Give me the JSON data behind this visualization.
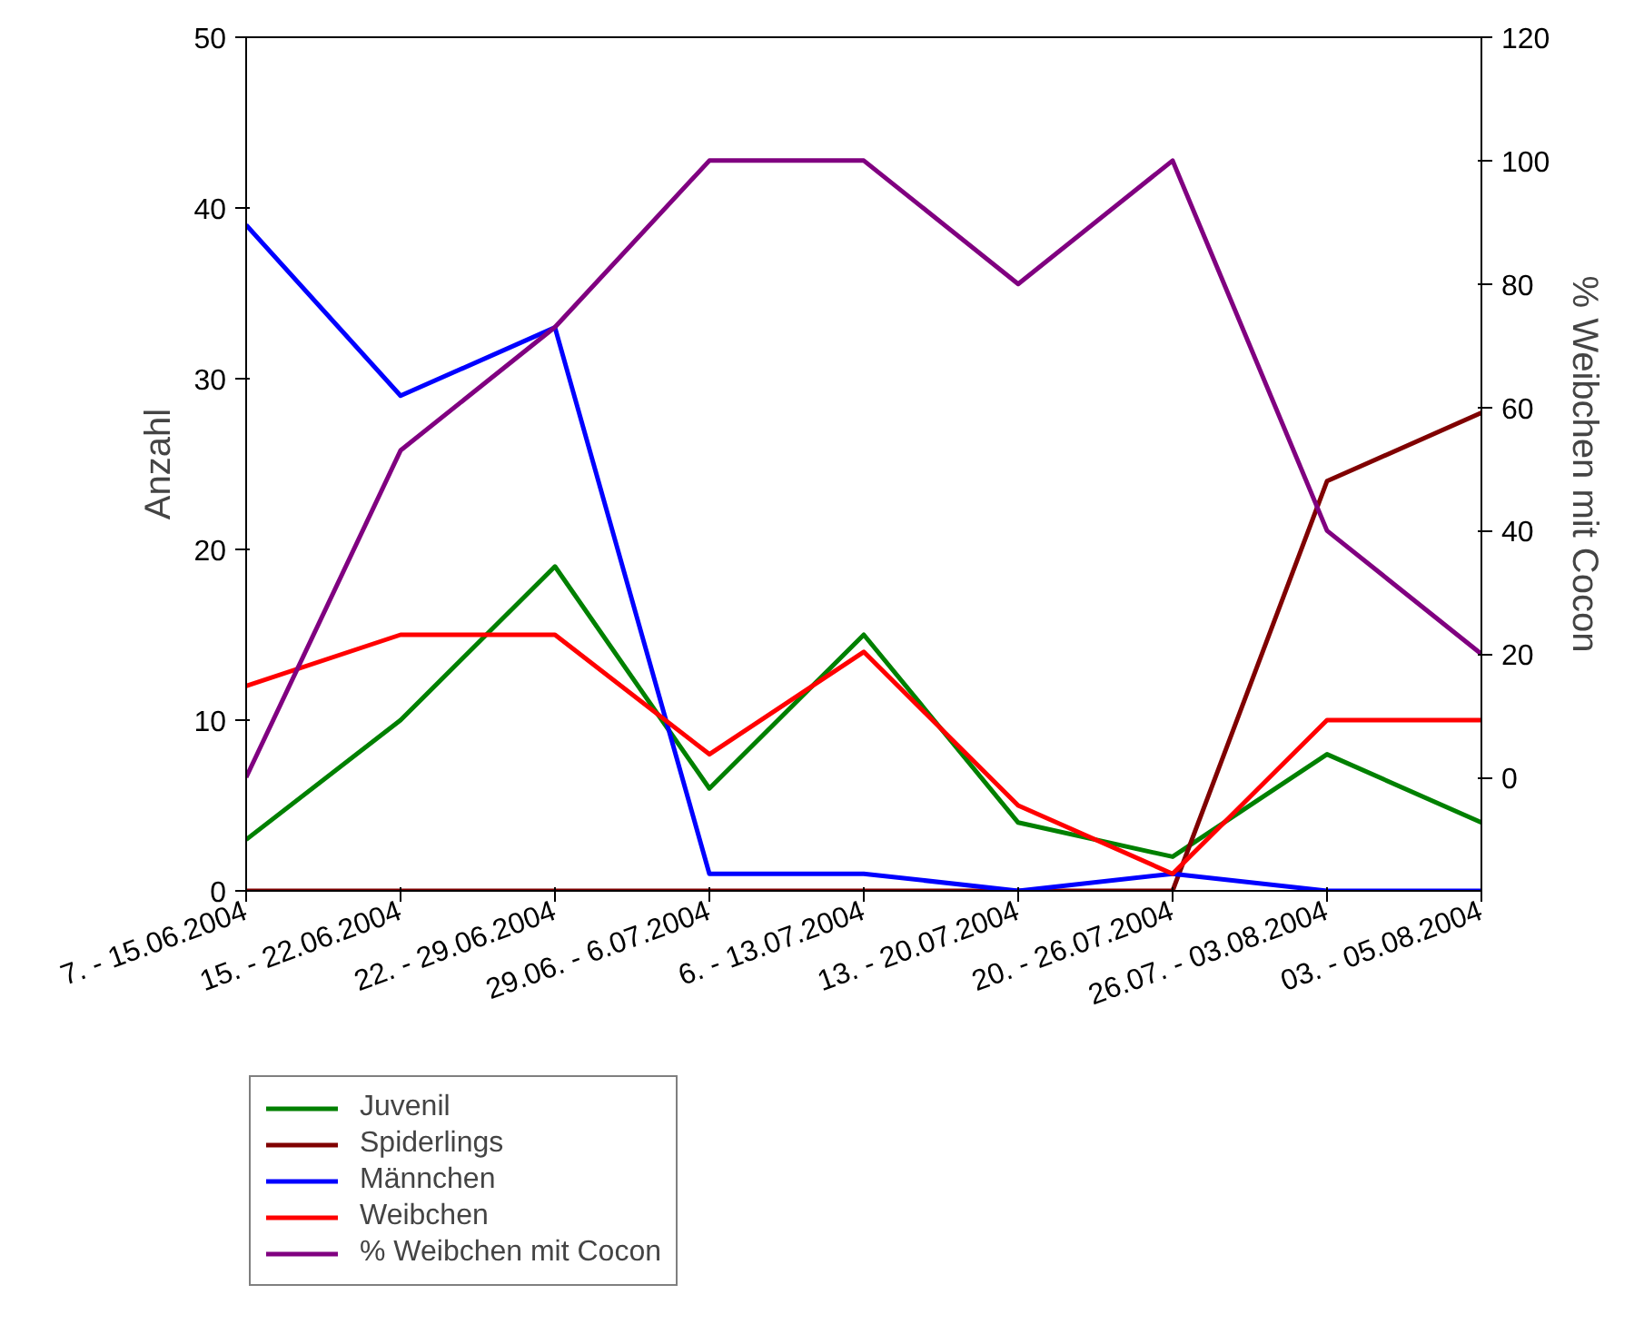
{
  "chart_data": {
    "type": "line",
    "ylabel": "Anzahl",
    "y2label": "% Weibchen mit Cocon",
    "categories": [
      "7. - 15.06.2004",
      "15. - 22.06.2004",
      "22. - 29.06.2004",
      "29.06. - 6.07.2004",
      "6. - 13.07.2004",
      "13. - 20.07.2004",
      "20. - 26.07.2004",
      "26.07. - 03.08.2004",
      "03. - 05.08.2004"
    ],
    "series": [
      {
        "name": "Juvenil",
        "color": "#008000",
        "values": [
          3,
          10,
          19,
          6,
          15,
          4,
          2,
          8,
          4
        ]
      },
      {
        "name": "Spiderlings",
        "color": "#800000",
        "values": [
          0,
          0,
          0,
          0,
          0,
          0,
          0,
          24,
          28
        ]
      },
      {
        "name": "Männchen",
        "color": "#0000ff",
        "values": [
          39,
          29,
          33,
          1,
          1,
          0,
          1,
          0,
          0
        ]
      },
      {
        "name": "Weibchen",
        "color": "#ff0000",
        "values": [
          12,
          15,
          15,
          8,
          14,
          5,
          1,
          10,
          10
        ]
      },
      {
        "name": "% Weibchen mit Cocon",
        "color": "#800080",
        "axis": "y2",
        "values": [
          0,
          53,
          73,
          100,
          100,
          80,
          100,
          40,
          20
        ]
      }
    ],
    "ylim": [
      0,
      50
    ],
    "yticks": [
      0,
      10,
      20,
      30,
      40,
      50
    ],
    "y2lim": [
      -18.4,
      120
    ],
    "y2ticks": [
      0,
      20,
      40,
      60,
      80,
      100,
      120
    ],
    "grid": false,
    "legend": "bottom",
    "marker": "none",
    "line_style": "solid"
  }
}
